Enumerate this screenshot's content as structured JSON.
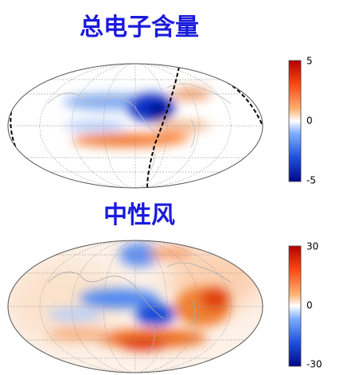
{
  "panels": [
    {
      "title": "总电子含量",
      "colorbar_ticks": [
        "5",
        "0",
        "-5"
      ]
    },
    {
      "title": "中性风",
      "colorbar_ticks": [
        "30",
        "0",
        "-30"
      ]
    }
  ]
}
